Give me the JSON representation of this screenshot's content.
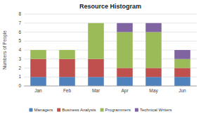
{
  "chart_data": {
    "type": "bar",
    "stacked": true,
    "title": "Resource Histogram",
    "ylabel": "Numbers of People",
    "categories": [
      "Jan",
      "Feb",
      "Mar",
      "Apr",
      "May",
      "Jun"
    ],
    "series": [
      {
        "name": "Managers",
        "color": "#4F81BD",
        "values": [
          1,
          1,
          1,
          1,
          1,
          1
        ]
      },
      {
        "name": "Business Analysts",
        "color": "#C0504D",
        "values": [
          2,
          2,
          2,
          1,
          1,
          1
        ]
      },
      {
        "name": "Programmers",
        "color": "#9BBB59",
        "values": [
          1,
          1,
          4,
          4,
          4,
          1
        ]
      },
      {
        "name": "Technical Writers",
        "color": "#8064A2",
        "values": [
          0,
          0,
          0,
          1,
          1,
          1
        ]
      }
    ],
    "ylim": [
      0,
      8
    ],
    "yticks": [
      0,
      1,
      2,
      3,
      4,
      5,
      6,
      7,
      8
    ],
    "grid": true,
    "legend": "bottom"
  }
}
